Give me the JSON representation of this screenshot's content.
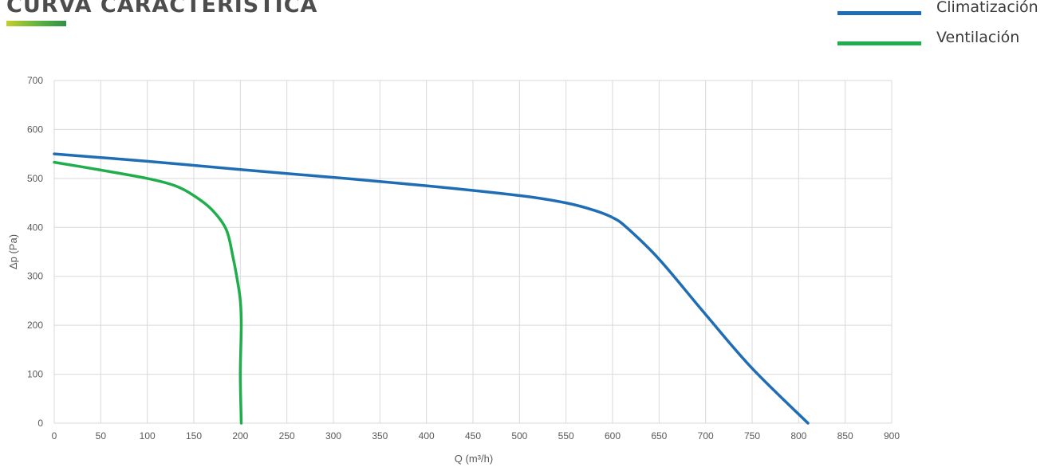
{
  "header": {
    "title": "CURVA CARACTERÍSTICA"
  },
  "chart_data": {
    "type": "line",
    "xlabel": "Q (m³/h)",
    "ylabel": "Δp (Pa)",
    "xlim": [
      0,
      900
    ],
    "ylim": [
      0,
      700
    ],
    "xticks": [
      0,
      50,
      100,
      150,
      200,
      250,
      300,
      350,
      400,
      450,
      500,
      550,
      600,
      650,
      700,
      750,
      800,
      850,
      900
    ],
    "yticks": [
      0,
      100,
      200,
      300,
      400,
      500,
      600,
      700
    ],
    "grid": true,
    "legend_position": "top-right",
    "series": [
      {
        "name": "Climatización",
        "color": "#1f6db4",
        "x": [
          0,
          100,
          200,
          300,
          400,
          500,
          550,
          580,
          600,
          615,
          650,
          700,
          750,
          810
        ],
        "y": [
          550,
          535,
          518,
          502,
          485,
          465,
          450,
          435,
          420,
          400,
          335,
          222,
          112,
          0
        ]
      },
      {
        "name": "Ventilación",
        "color": "#1fae4b",
        "x": [
          0,
          50,
          100,
          130,
          150,
          170,
          185,
          192,
          197,
          200,
          201,
          200,
          201
        ],
        "y": [
          533,
          517,
          500,
          485,
          465,
          435,
          395,
          340,
          290,
          250,
          200,
          100,
          0
        ]
      }
    ]
  }
}
